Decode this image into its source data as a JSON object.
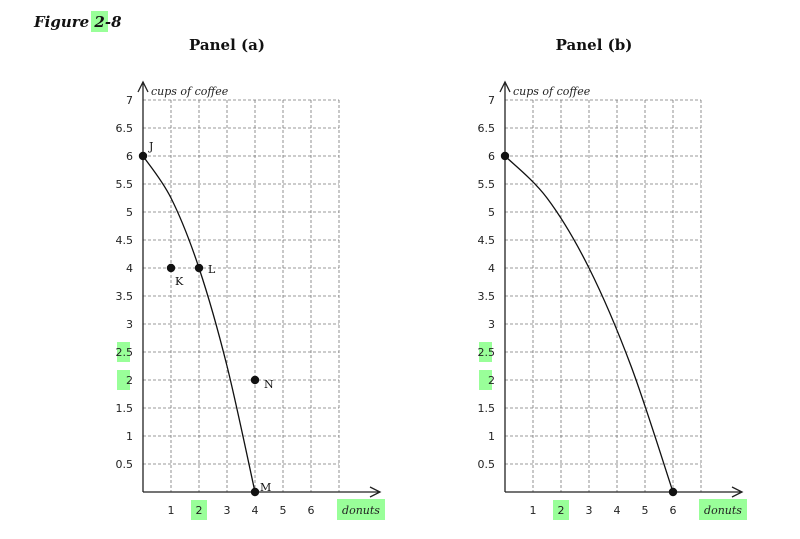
{
  "figure_title": "Figure 2-8",
  "highlight_color": "#99ff99",
  "chart_data": [
    {
      "type": "line",
      "title": "Panel (a)",
      "ylabel": "cups of coffee",
      "xlabel": "donuts",
      "xlim": [
        0,
        8
      ],
      "ylim": [
        0,
        7
      ],
      "x_ticks": [
        "1",
        "2",
        "3",
        "4",
        "5",
        "6"
      ],
      "x_tick_values": [
        1,
        2,
        3,
        4,
        5,
        6
      ],
      "y_ticks": [
        "0.5",
        "1",
        "1.5",
        "2",
        "2.5",
        "3",
        "3.5",
        "4",
        "4.5",
        "5",
        "5.5",
        "6",
        "6.5",
        "7"
      ],
      "y_tick_values": [
        0.5,
        1,
        1.5,
        2,
        2.5,
        3,
        3.5,
        4,
        4.5,
        5,
        5.5,
        6,
        6.5,
        7
      ],
      "grid": true,
      "curve": {
        "x": [
          0,
          1,
          2,
          3,
          4
        ],
        "y": [
          6,
          5.25,
          4,
          2.25,
          0
        ]
      },
      "points": [
        {
          "label": "J",
          "x": 0,
          "y": 6
        },
        {
          "label": "K",
          "x": 1,
          "y": 4
        },
        {
          "label": "L",
          "x": 2,
          "y": 4
        },
        {
          "label": "N",
          "x": 4,
          "y": 2
        },
        {
          "label": "M",
          "x": 4,
          "y": 0
        }
      ]
    },
    {
      "type": "line",
      "title": "Panel (b)",
      "ylabel": "cups of coffee",
      "xlabel": "donuts",
      "xlim": [
        0,
        8
      ],
      "ylim": [
        0,
        7
      ],
      "x_ticks": [
        "1",
        "2",
        "3",
        "4",
        "5",
        "6"
      ],
      "x_tick_values": [
        1,
        2,
        3,
        4,
        5,
        6
      ],
      "y_ticks": [
        "0.5",
        "1",
        "1.5",
        "2",
        "2.5",
        "3",
        "3.5",
        "4",
        "4.5",
        "5",
        "5.5",
        "6",
        "6.5",
        "7"
      ],
      "y_tick_values": [
        0.5,
        1,
        1.5,
        2,
        2.5,
        3,
        3.5,
        4,
        4.5,
        5,
        5.5,
        6,
        6.5,
        7
      ],
      "grid": true,
      "curve": {
        "x": [
          0,
          1.5,
          3,
          4.5,
          6
        ],
        "y": [
          6,
          5.25,
          4,
          2.25,
          0
        ]
      },
      "points": [
        {
          "label": "",
          "x": 0,
          "y": 6
        },
        {
          "label": "",
          "x": 6,
          "y": 0
        }
      ]
    }
  ]
}
